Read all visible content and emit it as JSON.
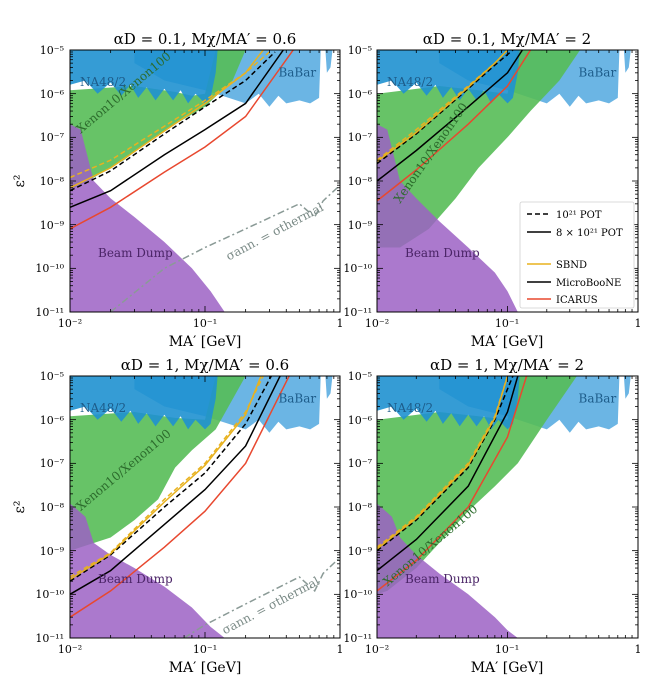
{
  "chart_data": [
    {
      "type": "line",
      "title": "αD = 0.1,  Mχ/MA′ = 0.6",
      "xlabel": "MA′ [GeV]",
      "ylabel": "ε²",
      "xlim": [
        0.01,
        1
      ],
      "ylim": [
        1e-11,
        1e-05
      ],
      "xscale": "log",
      "yscale": "log",
      "xticks": [
        "10⁻²",
        "10⁻¹",
        "1"
      ],
      "yticks": [
        "10⁻¹¹",
        "10⁻¹⁰",
        "10⁻⁹",
        "10⁻⁸",
        "10⁻⁷",
        "10⁻⁶",
        "10⁻⁵"
      ],
      "labels": {
        "na48": "NA48/2",
        "babar": "BaBar",
        "xenon": "Xenon10/Xenon100",
        "beamdump": "Beam Dump",
        "thermal": "σann. = σthermal"
      },
      "series": [
        {
          "name": "SBND 10²¹ POT",
          "color": "#e8b21f",
          "dash": true,
          "x": [
            0.01,
            0.02,
            0.05,
            0.1,
            0.2,
            0.3
          ],
          "y": [
            1.2e-08,
            3e-08,
            1.8e-07,
            7e-07,
            3e-06,
            9e-06
          ]
        },
        {
          "name": "MicroBooNE 10²¹ POT",
          "color": "#000000",
          "dash": true,
          "x": [
            0.01,
            0.02,
            0.05,
            0.1,
            0.2,
            0.33
          ],
          "y": [
            6e-09,
            1.7e-08,
            1.2e-07,
            5e-07,
            2e-06,
            9e-06
          ]
        },
        {
          "name": "SBND 8×10²¹ POT",
          "color": "#e8b21f",
          "dash": false,
          "x": [
            0.01,
            0.02,
            0.05,
            0.1,
            0.2,
            0.27
          ],
          "y": [
            7e-09,
            2e-08,
            1.4e-07,
            6e-07,
            3e-06,
            1e-05
          ]
        },
        {
          "name": "MicroBooNE 8×10²¹ POT",
          "color": "#000000",
          "dash": false,
          "x": [
            0.01,
            0.02,
            0.05,
            0.1,
            0.2,
            0.38
          ],
          "y": [
            2.5e-09,
            6e-09,
            4e-08,
            1.5e-07,
            6e-07,
            1e-05
          ]
        },
        {
          "name": "ICARUS 8×10²¹ POT",
          "color": "#e8482f",
          "dash": false,
          "x": [
            0.01,
            0.02,
            0.05,
            0.1,
            0.2,
            0.45
          ],
          "y": [
            8e-10,
            2.5e-09,
            1.6e-08,
            6e-08,
            3e-07,
            1e-05
          ]
        },
        {
          "name": "σann. = σthermal",
          "color": "#8a9a96",
          "dash": true,
          "x": [
            0.02,
            0.05,
            0.1,
            0.2,
            0.5,
            0.65,
            0.75,
            1.0
          ],
          "y": [
            1e-11,
            1e-10,
            3e-10,
            8e-10,
            3e-09,
            1.5e-09,
            3.5e-09,
            8e-09
          ]
        }
      ]
    },
    {
      "type": "line",
      "title": "αD = 0.1,  Mχ/MA′ = 2",
      "xlabel": "MA′ [GeV]",
      "ylabel": "ε²",
      "xlim": [
        0.01,
        1
      ],
      "ylim": [
        1e-11,
        1e-05
      ],
      "xscale": "log",
      "yscale": "log",
      "xticks": [
        "10⁻²",
        "10⁻¹",
        "1"
      ],
      "yticks": [
        "10⁻¹¹",
        "10⁻¹⁰",
        "10⁻⁹",
        "10⁻⁸",
        "10⁻⁷",
        "10⁻⁶",
        "10⁻⁵"
      ],
      "labels": {
        "na48": "NA48/2",
        "babar": "BaBar",
        "xenon": "Xenon10/Xenon100",
        "beamdump": "Beam Dump"
      },
      "series": [
        {
          "name": "SBND 10²¹ POT",
          "color": "#e8b21f",
          "dash": true,
          "x": [
            0.01,
            0.02,
            0.05,
            0.08,
            0.1
          ],
          "y": [
            3e-08,
            1.5e-07,
            1.5e-06,
            5e-06,
            1e-05
          ]
        },
        {
          "name": "MicroBooNE 10²¹ POT",
          "color": "#000000",
          "dash": true,
          "x": [
            0.01,
            0.02,
            0.05,
            0.08,
            0.11
          ],
          "y": [
            2.5e-08,
            1.2e-07,
            1.3e-06,
            4.5e-06,
            1e-05
          ]
        },
        {
          "name": "SBND 8×10²¹ POT",
          "color": "#e8b21f",
          "dash": false,
          "x": [
            0.01,
            0.02,
            0.05,
            0.08,
            0.1
          ],
          "y": [
            2.8e-08,
            1.3e-07,
            1.4e-06,
            5e-06,
            1e-05
          ]
        },
        {
          "name": "MicroBooNE 8×10²¹ POT",
          "color": "#000000",
          "dash": false,
          "x": [
            0.01,
            0.02,
            0.05,
            0.1,
            0.13
          ],
          "y": [
            1e-08,
            5e-08,
            5e-07,
            3e-06,
            1e-05
          ]
        },
        {
          "name": "ICARUS 8×10²¹ POT",
          "color": "#e8482f",
          "dash": false,
          "x": [
            0.01,
            0.02,
            0.05,
            0.1,
            0.15
          ],
          "y": [
            3.5e-09,
            1.8e-08,
            2e-07,
            1.5e-06,
            1e-05
          ]
        }
      ],
      "legend": {
        "style_title_dashed": "10²¹ POT",
        "style_title_solid": "8 × 10²¹ POT",
        "entries": [
          {
            "label": "SBND",
            "color": "#e8b21f"
          },
          {
            "label": "MicroBooNE",
            "color": "#000000"
          },
          {
            "label": "ICARUS",
            "color": "#e8482f"
          }
        ]
      }
    },
    {
      "type": "line",
      "title": "αD = 1,  Mχ/MA′ = 0.6",
      "xlabel": "MA′ [GeV]",
      "ylabel": "ε²",
      "xlim": [
        0.01,
        1
      ],
      "ylim": [
        1e-11,
        1e-05
      ],
      "xscale": "log",
      "yscale": "log",
      "xticks": [
        "10⁻²",
        "10⁻¹",
        "1"
      ],
      "yticks": [
        "10⁻¹¹",
        "10⁻¹⁰",
        "10⁻⁹",
        "10⁻⁸",
        "10⁻⁷",
        "10⁻⁶",
        "10⁻⁵"
      ],
      "labels": {
        "na48": "NA48/2",
        "babar": "BaBar",
        "xenon": "Xenon10/Xenon100",
        "beamdump": "Beam Dump",
        "thermal": "σann. = σthermal"
      },
      "series": [
        {
          "name": "SBND 10²¹ POT",
          "color": "#e8b21f",
          "dash": true,
          "x": [
            0.01,
            0.02,
            0.05,
            0.1,
            0.2,
            0.27
          ],
          "y": [
            2.5e-10,
            9e-10,
            1.5e-08,
            1e-07,
            1.5e-06,
            1e-05
          ]
        },
        {
          "name": "MicroBooNE 10²¹ POT",
          "color": "#000000",
          "dash": true,
          "x": [
            0.01,
            0.02,
            0.05,
            0.1,
            0.2,
            0.31
          ],
          "y": [
            2e-10,
            8e-10,
            1e-08,
            6e-08,
            8e-07,
            1e-05
          ]
        },
        {
          "name": "SBND 8×10²¹ POT",
          "color": "#e8b21f",
          "dash": false,
          "x": [
            0.01,
            0.02,
            0.05,
            0.1,
            0.2,
            0.26
          ],
          "y": [
            2.2e-10,
            8.5e-10,
            1.3e-08,
            9e-08,
            1.3e-06,
            1e-05
          ]
        },
        {
          "name": "MicroBooNE 8×10²¹ POT",
          "color": "#000000",
          "dash": false,
          "x": [
            0.01,
            0.02,
            0.05,
            0.1,
            0.2,
            0.36
          ],
          "y": [
            1e-10,
            3.5e-10,
            4e-09,
            2.5e-08,
            2.5e-07,
            1e-05
          ]
        },
        {
          "name": "ICARUS 8×10²¹ POT",
          "color": "#e8482f",
          "dash": false,
          "x": [
            0.01,
            0.02,
            0.05,
            0.1,
            0.2,
            0.42
          ],
          "y": [
            3e-11,
            1.2e-10,
            1.2e-09,
            8e-09,
            1e-07,
            1e-05
          ]
        },
        {
          "name": "σann. = σthermal",
          "color": "#8a9a96",
          "dash": true,
          "x": [
            0.07,
            0.1,
            0.2,
            0.5,
            0.65,
            0.75,
            1.0
          ],
          "y": [
            1e-11,
            2e-11,
            6e-11,
            2.5e-10,
            1.2e-10,
            3e-10,
            7e-10
          ]
        }
      ]
    },
    {
      "type": "line",
      "title": "αD = 1,  Mχ/MA′ = 2",
      "xlabel": "MA′ [GeV]",
      "ylabel": "ε²",
      "xlim": [
        0.01,
        1
      ],
      "ylim": [
        1e-11,
        1e-05
      ],
      "xscale": "log",
      "yscale": "log",
      "xticks": [
        "10⁻²",
        "10⁻¹",
        "1"
      ],
      "yticks": [
        "10⁻¹¹",
        "10⁻¹⁰",
        "10⁻⁹",
        "10⁻⁸",
        "10⁻⁷",
        "10⁻⁶",
        "10⁻⁵"
      ],
      "labels": {
        "na48": "NA48/2",
        "babar": "BaBar",
        "xenon": "Xenon10/Xenon100",
        "beamdump": "Beam Dump"
      },
      "series": [
        {
          "name": "SBND 10²¹ POT",
          "color": "#e8b21f",
          "dash": true,
          "x": [
            0.01,
            0.02,
            0.05,
            0.08,
            0.1
          ],
          "y": [
            1.2e-09,
            6e-09,
            1e-07,
            1.2e-06,
            1e-05
          ]
        },
        {
          "name": "MicroBooNE 10²¹ POT",
          "color": "#000000",
          "dash": true,
          "x": [
            0.01,
            0.02,
            0.05,
            0.08,
            0.11
          ],
          "y": [
            1e-09,
            5e-09,
            8e-08,
            1e-06,
            1e-05
          ]
        },
        {
          "name": "SBND 8×10²¹ POT",
          "color": "#e8b21f",
          "dash": false,
          "x": [
            0.01,
            0.02,
            0.05,
            0.08,
            0.1
          ],
          "y": [
            1.1e-09,
            5.5e-09,
            9e-08,
            1.1e-06,
            1e-05
          ]
        },
        {
          "name": "MicroBooNE 8×10²¹ POT",
          "color": "#000000",
          "dash": false,
          "x": [
            0.01,
            0.02,
            0.05,
            0.1,
            0.12
          ],
          "y": [
            3.5e-10,
            1.8e-09,
            3e-08,
            1.5e-06,
            1e-05
          ]
        },
        {
          "name": "ICARUS 8×10²¹ POT",
          "color": "#e8482f",
          "dash": false,
          "x": [
            0.01,
            0.02,
            0.05,
            0.1,
            0.14
          ],
          "y": [
            1.2e-10,
            6e-10,
            1e-08,
            4e-07,
            1e-05
          ]
        }
      ]
    }
  ],
  "regions": {
    "na48_color": "#1f91d0",
    "babar_color": "#63b1e3",
    "xenon_color": "#56bd56",
    "beamdump_color": "#9c62c4",
    "thermal_color": "#8a9a96"
  }
}
